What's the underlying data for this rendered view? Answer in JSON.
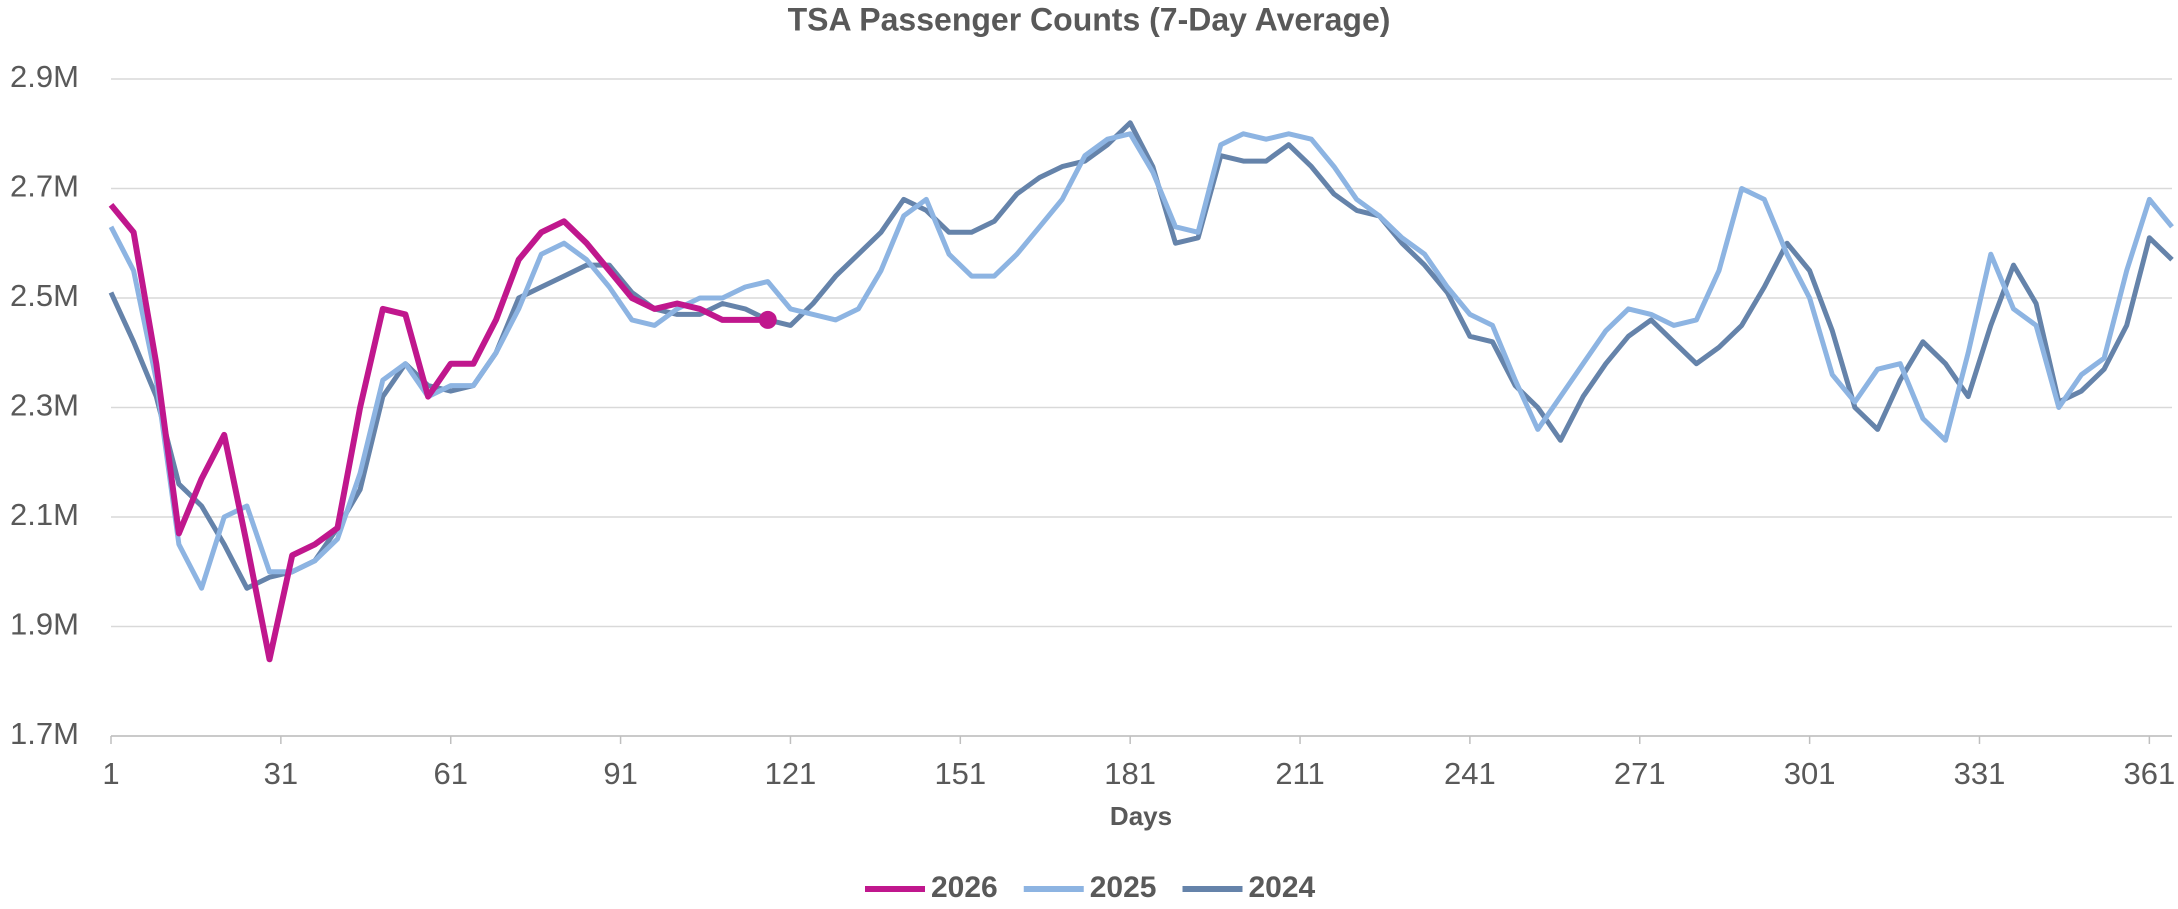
{
  "chart_data": {
    "type": "line",
    "title": "TSA Passenger Counts (7-Day Average)",
    "x_label": "Days",
    "x": [
      1,
      5,
      9,
      13,
      17,
      21,
      25,
      29,
      33,
      37,
      41,
      45,
      49,
      53,
      57,
      61,
      65,
      69,
      73,
      77,
      81,
      85,
      89,
      93,
      97,
      101,
      105,
      109,
      113,
      117,
      121,
      125,
      129,
      133,
      137,
      141,
      145,
      149,
      153,
      157,
      161,
      165,
      169,
      173,
      177,
      181,
      185,
      189,
      193,
      197,
      201,
      205,
      209,
      213,
      217,
      221,
      225,
      229,
      233,
      237,
      241,
      245,
      249,
      253,
      257,
      261,
      265,
      269,
      273,
      277,
      281,
      285,
      289,
      293,
      297,
      301,
      305,
      309,
      313,
      317,
      321,
      325,
      329,
      333,
      337,
      341,
      345,
      349,
      353,
      357,
      361,
      365
    ],
    "series": [
      {
        "name": "2026",
        "color": "#c0178d",
        "values": [
          2.67,
          2.62,
          2.38,
          2.07,
          2.17,
          2.25,
          2.05,
          1.84,
          2.03,
          2.05,
          2.08,
          2.3,
          2.48,
          2.47,
          2.32,
          2.38,
          2.38,
          2.46,
          2.57,
          2.62,
          2.64,
          2.6,
          2.55,
          2.5,
          2.48,
          2.49,
          2.48,
          2.46,
          2.46,
          2.46,
          null,
          null,
          null,
          null,
          null,
          null,
          null,
          null,
          null,
          null,
          null,
          null,
          null,
          null,
          null,
          null,
          null,
          null,
          null,
          null,
          null,
          null,
          null,
          null,
          null,
          null,
          null,
          null,
          null,
          null,
          null,
          null,
          null,
          null,
          null,
          null,
          null,
          null,
          null,
          null,
          null,
          null,
          null,
          null,
          null,
          null,
          null,
          null,
          null,
          null,
          null,
          null,
          null,
          null,
          null,
          null,
          null,
          null,
          null,
          null,
          null,
          null
        ]
      },
      {
        "name": "2025",
        "color": "#8db4e2",
        "values": [
          2.63,
          2.55,
          2.35,
          2.05,
          1.97,
          2.1,
          2.12,
          2.0,
          2.0,
          2.02,
          2.06,
          2.18,
          2.35,
          2.38,
          2.32,
          2.34,
          2.34,
          2.4,
          2.48,
          2.58,
          2.6,
          2.57,
          2.52,
          2.46,
          2.45,
          2.48,
          2.5,
          2.5,
          2.52,
          2.53,
          2.48,
          2.47,
          2.46,
          2.48,
          2.55,
          2.65,
          2.68,
          2.58,
          2.54,
          2.54,
          2.58,
          2.63,
          2.68,
          2.76,
          2.79,
          2.8,
          2.73,
          2.63,
          2.62,
          2.78,
          2.8,
          2.79,
          2.8,
          2.79,
          2.74,
          2.68,
          2.65,
          2.61,
          2.58,
          2.52,
          2.47,
          2.45,
          2.35,
          2.26,
          2.32,
          2.38,
          2.44,
          2.48,
          2.47,
          2.45,
          2.46,
          2.55,
          2.7,
          2.68,
          2.58,
          2.5,
          2.36,
          2.31,
          2.37,
          2.38,
          2.28,
          2.24,
          2.4,
          2.58,
          2.48,
          2.45,
          2.3,
          2.36,
          2.39,
          2.55,
          2.68,
          2.63
        ]
      },
      {
        "name": "2024",
        "color": "#6583aa",
        "values": [
          2.51,
          2.42,
          2.32,
          2.16,
          2.12,
          2.05,
          1.97,
          1.99,
          2.0,
          2.02,
          2.08,
          2.15,
          2.32,
          2.38,
          2.34,
          2.33,
          2.34,
          2.4,
          2.5,
          2.52,
          2.54,
          2.56,
          2.56,
          2.51,
          2.48,
          2.47,
          2.47,
          2.49,
          2.48,
          2.46,
          2.45,
          2.49,
          2.54,
          2.58,
          2.62,
          2.68,
          2.66,
          2.62,
          2.62,
          2.64,
          2.69,
          2.72,
          2.74,
          2.75,
          2.78,
          2.82,
          2.74,
          2.6,
          2.61,
          2.76,
          2.75,
          2.75,
          2.78,
          2.74,
          2.69,
          2.66,
          2.65,
          2.6,
          2.56,
          2.51,
          2.43,
          2.42,
          2.34,
          2.3,
          2.24,
          2.32,
          2.38,
          2.43,
          2.46,
          2.42,
          2.38,
          2.41,
          2.45,
          2.52,
          2.6,
          2.55,
          2.44,
          2.3,
          2.26,
          2.35,
          2.42,
          2.38,
          2.32,
          2.45,
          2.56,
          2.49,
          2.31,
          2.33,
          2.37,
          2.45,
          2.61,
          2.57
        ]
      }
    ],
    "xlim": [
      1,
      365
    ],
    "xticks": [
      1,
      31,
      61,
      91,
      121,
      151,
      181,
      211,
      241,
      271,
      301,
      331,
      361
    ],
    "ylim": [
      1.7,
      2.9
    ],
    "yticks": [
      {
        "value": 1.7,
        "label": "1.7M"
      },
      {
        "value": 1.9,
        "label": "1.9M"
      },
      {
        "value": 2.1,
        "label": "2.1M"
      },
      {
        "value": 2.3,
        "label": "2.3M"
      },
      {
        "value": 2.5,
        "label": "2.5M"
      },
      {
        "value": 2.7,
        "label": "2.7M"
      },
      {
        "value": 2.9,
        "label": "2.9M"
      }
    ],
    "grid": true,
    "legend": "bottom"
  }
}
